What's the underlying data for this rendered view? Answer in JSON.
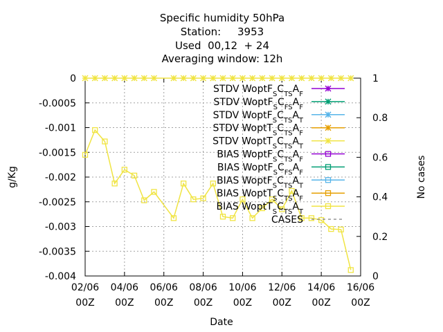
{
  "chart_data": {
    "type": "line",
    "title_lines": [
      "Specific humidity 50hPa",
      "Station:     3953",
      "Used  00,12  + 24",
      "Averaging window: 12h"
    ],
    "xlabel": "Date",
    "ylabel": "g/Kg",
    "y2label": "No cases",
    "xlim": [
      0,
      14
    ],
    "ylim": [
      -0.004,
      0
    ],
    "y2lim": [
      0,
      1
    ],
    "grid": true,
    "legend_position": "top-right",
    "x_ticks": [
      {
        "value": 0,
        "line1": "02/06",
        "line2": "00Z"
      },
      {
        "value": 2,
        "line1": "04/06",
        "line2": "00Z"
      },
      {
        "value": 4,
        "line1": "06/06",
        "line2": "00Z"
      },
      {
        "value": 6,
        "line1": "08/06",
        "line2": "00Z"
      },
      {
        "value": 8,
        "line1": "10/06",
        "line2": "00Z"
      },
      {
        "value": 10,
        "line1": "12/06",
        "line2": "00Z"
      },
      {
        "value": 12,
        "line1": "14/06",
        "line2": "00Z"
      },
      {
        "value": 14,
        "line1": "16/06",
        "line2": "00Z"
      }
    ],
    "y_ticks": [
      {
        "value": 0,
        "label": "0"
      },
      {
        "value": -0.0005,
        "label": "-0.0005"
      },
      {
        "value": -0.001,
        "label": "-0.001"
      },
      {
        "value": -0.0015,
        "label": "-0.0015"
      },
      {
        "value": -0.002,
        "label": "-0.002"
      },
      {
        "value": -0.0025,
        "label": "-0.0025"
      },
      {
        "value": -0.003,
        "label": "-0.003"
      },
      {
        "value": -0.0035,
        "label": "-0.0035"
      },
      {
        "value": -0.004,
        "label": "-0.004"
      }
    ],
    "y2_ticks": [
      {
        "value": 0,
        "label": "0"
      },
      {
        "value": 0.2,
        "label": "0.2"
      },
      {
        "value": 0.4,
        "label": "0.4"
      },
      {
        "value": 0.6,
        "label": "0.6"
      },
      {
        "value": 0.8,
        "label": "0.8"
      },
      {
        "value": 1,
        "label": "1"
      }
    ],
    "legend": [
      {
        "prefix": "STDV Wopt",
        "parts": [
          [
            "F",
            "S"
          ],
          [
            "C",
            "T",
            "S"
          ],
          [
            "A",
            "F"
          ]
        ],
        "color": "#9400d3",
        "marker": "star"
      },
      {
        "prefix": "STDV Wopt",
        "parts": [
          [
            "F",
            "S"
          ],
          [
            "C",
            "F",
            "S"
          ],
          [
            "A",
            "F"
          ]
        ],
        "color": "#009e73",
        "marker": "star"
      },
      {
        "prefix": "STDV Wopt",
        "parts": [
          [
            "F",
            "S"
          ],
          [
            "C",
            "T",
            "S"
          ],
          [
            "A",
            "T"
          ]
        ],
        "color": "#56b4e9",
        "marker": "star"
      },
      {
        "prefix": "STDV Wopt",
        "parts": [
          [
            "T",
            "S"
          ],
          [
            "C",
            "T",
            "S"
          ],
          [
            "A",
            "F"
          ]
        ],
        "color": "#e69f00",
        "marker": "star"
      },
      {
        "prefix": "STDV Wopt",
        "parts": [
          [
            "T",
            "S"
          ],
          [
            "C",
            "T",
            "S"
          ],
          [
            "A",
            "T"
          ]
        ],
        "color": "#f0e442",
        "marker": "star"
      },
      {
        "prefix": "BIAS Wopt",
        "parts": [
          [
            "F",
            "S"
          ],
          [
            "C",
            "T",
            "S"
          ],
          [
            "A",
            "F"
          ]
        ],
        "color": "#9400d3",
        "marker": "square"
      },
      {
        "prefix": "BIAS Wopt",
        "parts": [
          [
            "F",
            "S"
          ],
          [
            "C",
            "F",
            "S"
          ],
          [
            "A",
            "F"
          ]
        ],
        "color": "#009e73",
        "marker": "square"
      },
      {
        "prefix": "BIAS Wopt",
        "parts": [
          [
            "F",
            "S"
          ],
          [
            "C",
            "T",
            "S"
          ],
          [
            "A",
            "T"
          ]
        ],
        "color": "#56b4e9",
        "marker": "square"
      },
      {
        "prefix": "BIAS Wopt",
        "parts": [
          [
            "T",
            "S"
          ],
          [
            "C",
            "T",
            "S"
          ],
          [
            "A",
            "F"
          ]
        ],
        "color": "#e69f00",
        "marker": "square"
      },
      {
        "prefix": "BIAS Wopt",
        "parts": [
          [
            "T",
            "S"
          ],
          [
            "C",
            "T",
            "S"
          ],
          [
            "A",
            "T"
          ]
        ],
        "color": "#f0e442",
        "marker": "square"
      },
      {
        "prefix": "CASES",
        "parts": [],
        "color": "#808080",
        "marker": "dash"
      }
    ],
    "series": [
      {
        "name": "STDV Wopt TS CTS AT",
        "color": "#f0e442",
        "marker": "star",
        "x": [
          0,
          0.5,
          1,
          1.5,
          2,
          2.5,
          3,
          3.5,
          4.5,
          5,
          5.5,
          6,
          6.5,
          7,
          7.5,
          8,
          8.5,
          9,
          9.5,
          10,
          10.5,
          11,
          11.5,
          12,
          12.5,
          13,
          13.5
        ],
        "y": [
          0,
          0,
          0,
          0,
          0,
          0,
          0,
          0,
          0,
          0,
          0,
          0,
          0,
          0,
          0,
          0,
          0,
          0,
          0,
          0,
          0,
          0,
          0,
          0,
          0,
          0,
          0
        ]
      },
      {
        "name": "BIAS Wopt TS CTS AT",
        "color": "#f0e442",
        "marker": "square",
        "x": [
          0,
          0.5,
          1,
          1.5,
          2,
          2.5,
          3,
          3.5,
          4.5,
          5,
          5.5,
          6,
          6.5,
          7,
          7.5,
          8,
          8.5,
          9,
          9.5,
          10,
          10.5,
          11,
          11.5,
          12,
          12.5,
          13,
          13.5
        ],
        "y": [
          -0.00155,
          -0.00105,
          -0.00128,
          -0.00213,
          -0.00185,
          -0.00197,
          -0.00247,
          -0.0023,
          -0.00283,
          -0.00213,
          -0.00245,
          -0.00243,
          -0.00213,
          -0.0028,
          -0.00283,
          -0.00245,
          -0.00283,
          -0.00263,
          -0.00245,
          -0.00265,
          -0.00228,
          -0.00283,
          -0.00283,
          -0.00287,
          -0.00305,
          -0.00306,
          -0.00388
        ]
      }
    ]
  }
}
